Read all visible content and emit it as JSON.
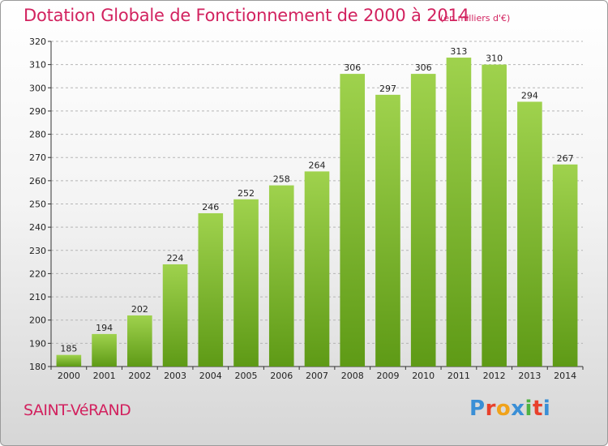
{
  "title": "Dotation Globale de Fonctionnement de 2000 à 2014",
  "unit_note": "(en milliers d'€)",
  "commune": "SAINT-VéRAND",
  "logo": {
    "text": "Proxiti",
    "letter_colors": [
      "#3a8fd6",
      "#e8412c",
      "#f0a21a",
      "#3a8fd6",
      "#4fb242",
      "#e8412c",
      "#3a8fd6"
    ]
  },
  "colors": {
    "title": "#d2225f",
    "bar_top": "#9fd24d",
    "bar_bottom": "#5e9a16",
    "grid": "#b5b5b5"
  },
  "chart_data": {
    "type": "bar",
    "title": "Dotation Globale de Fonctionnement de 2000 à 2014",
    "xlabel": "",
    "ylabel": "",
    "categories": [
      "2000",
      "2001",
      "2002",
      "2003",
      "2004",
      "2005",
      "2006",
      "2007",
      "2008",
      "2009",
      "2010",
      "2011",
      "2012",
      "2013",
      "2014"
    ],
    "values": [
      185,
      194,
      202,
      224,
      246,
      252,
      258,
      264,
      306,
      297,
      306,
      313,
      310,
      294,
      267
    ],
    "ylim": [
      180,
      320
    ],
    "yticks": [
      180,
      190,
      200,
      210,
      220,
      230,
      240,
      250,
      260,
      270,
      280,
      290,
      300,
      310,
      320
    ],
    "grid": true,
    "legend": "none"
  }
}
